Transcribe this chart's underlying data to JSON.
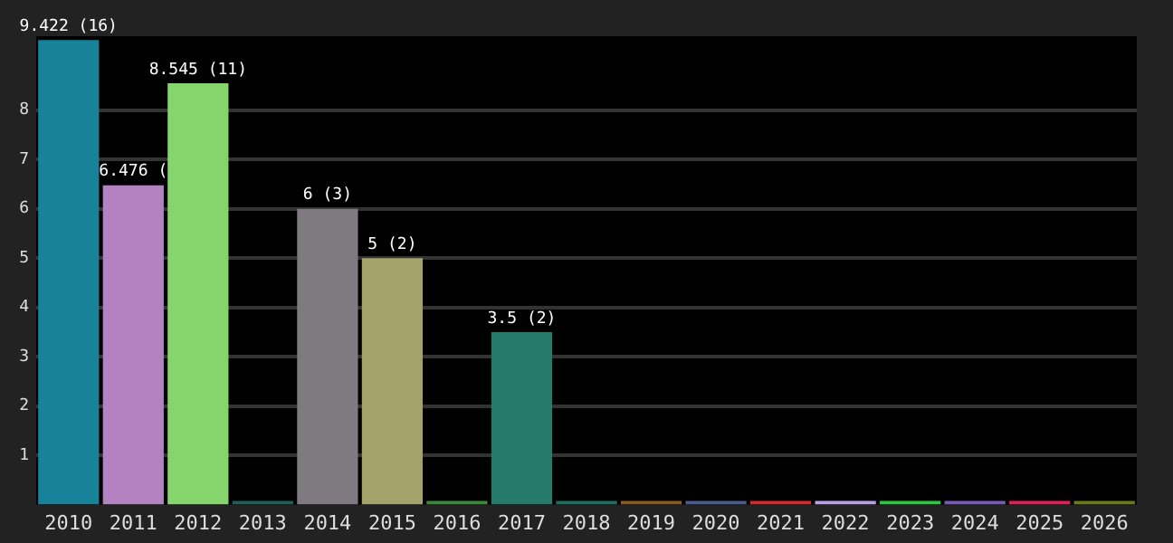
{
  "chart_data": {
    "type": "bar",
    "categories": [
      "2010",
      "2011",
      "2012",
      "2013",
      "2014",
      "2015",
      "2016",
      "2017",
      "2018",
      "2019",
      "2020",
      "2021",
      "2022",
      "2023",
      "2024",
      "2025",
      "2026"
    ],
    "values": [
      9.422,
      6.476,
      8.545,
      0,
      6,
      5,
      0,
      3.5,
      0,
      0,
      0,
      0,
      0,
      0,
      0,
      0,
      0
    ],
    "colors": [
      "#178299",
      "#b283c0",
      "#86d46c",
      "#1f5f5a",
      "#7f7a80",
      "#a2a26a",
      "#3a8a3a",
      "#267a69",
      "#1f6f5f",
      "#8b5a1f",
      "#4a5a8a",
      "#d42a2a",
      "#b8a0e8",
      "#2ec840",
      "#7a5ab8",
      "#e0205a",
      "#6a7a1a"
    ],
    "value_labels": [
      "9.422 (16)",
      "6.476 (",
      "8.545 (11)",
      null,
      "6 (3)",
      "5 (2)",
      null,
      "3.5 (2)",
      null,
      null,
      null,
      null,
      null,
      null,
      null,
      null,
      null
    ],
    "ylim": [
      0,
      9.5
    ],
    "yticks": [
      1,
      2,
      3,
      4,
      5,
      6,
      7,
      8
    ],
    "grid": "y",
    "legend": false
  }
}
